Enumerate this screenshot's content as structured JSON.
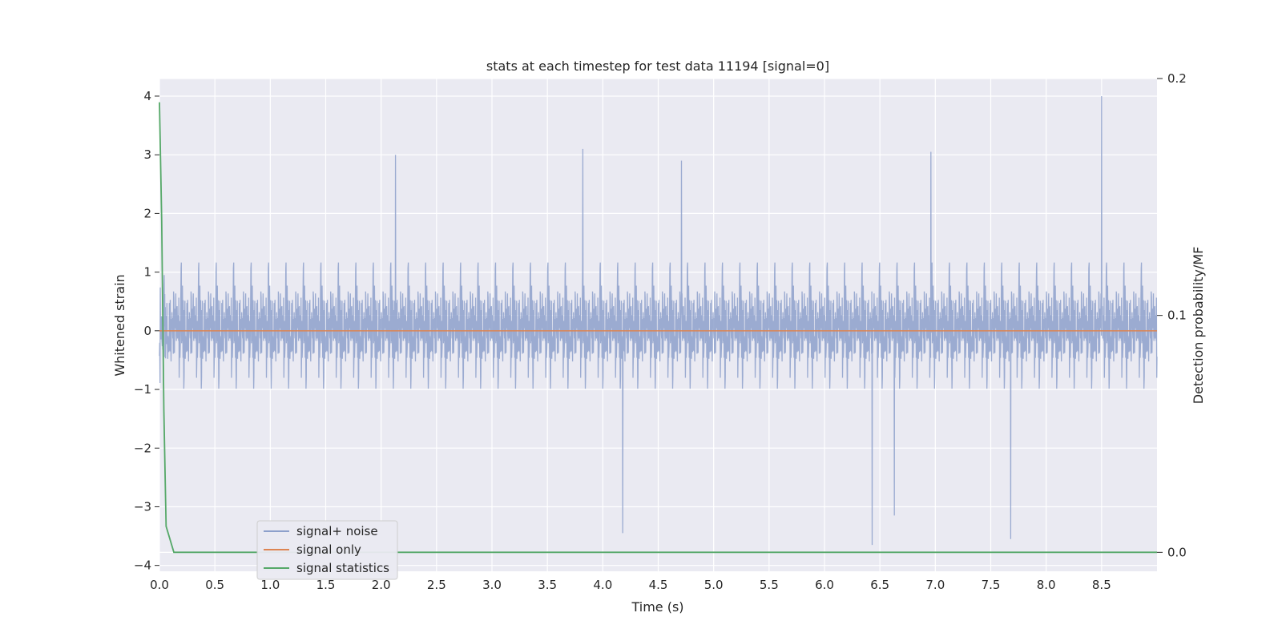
{
  "chart_data": {
    "type": "line",
    "title": "stats at each timestep for test data 11194 [signal=0]",
    "xlabel": "Time (s)",
    "ylabel": "Whitened strain",
    "y2label": "Detection probability/MF",
    "xlim": [
      0.0,
      9.0
    ],
    "ylim": [
      -4.1,
      4.3
    ],
    "y2lim": [
      -0.008,
      0.2
    ],
    "x_ticks": [
      "0.0",
      "0.5",
      "1.0",
      "1.5",
      "2.0",
      "2.5",
      "3.0",
      "3.5",
      "4.0",
      "4.5",
      "5.0",
      "5.5",
      "6.0",
      "6.5",
      "7.0",
      "7.5",
      "8.0",
      "8.5"
    ],
    "y_ticks": [
      "−4",
      "−3",
      "−2",
      "−1",
      "0",
      "1",
      "2",
      "3",
      "4"
    ],
    "y2_ticks": [
      "0.0",
      "0.1",
      "0.2"
    ],
    "grid": true,
    "legend_position": "lower-left",
    "series": [
      {
        "name": "signal+ noise",
        "color": "#8da0cb",
        "axis": "left",
        "description_values": "dense noise, typical range -2 to 2, extremes ~4.0 at 8.5s and ~-3.6 at 6.43s",
        "x_range": [
          0.0,
          9.0
        ],
        "typical_range": [
          -2.0,
          2.0
        ],
        "envelope_range": [
          -3.7,
          4.0
        ],
        "peaks": [
          {
            "x": 8.5,
            "y": 4.0
          },
          {
            "x": 3.82,
            "y": 3.1
          },
          {
            "x": 6.96,
            "y": 3.05
          },
          {
            "x": 2.13,
            "y": 3.0
          },
          {
            "x": 4.71,
            "y": 2.9
          },
          {
            "x": 4.18,
            "y": -3.45
          },
          {
            "x": 6.43,
            "y": -3.65
          },
          {
            "x": 6.63,
            "y": -3.15
          },
          {
            "x": 7.68,
            "y": -3.55
          }
        ]
      },
      {
        "name": "signal only",
        "color": "#dd8452",
        "axis": "left",
        "x": [
          0.0,
          9.0
        ],
        "y": [
          0.0,
          0.0
        ]
      },
      {
        "name": "signal statistics",
        "color": "#55a868",
        "axis": "right",
        "x": [
          0.0,
          0.02,
          0.04,
          0.06,
          0.13,
          0.8,
          9.0
        ],
        "y": [
          0.19,
          0.14,
          0.06,
          0.011,
          0.0,
          0.0,
          0.0
        ]
      }
    ]
  }
}
